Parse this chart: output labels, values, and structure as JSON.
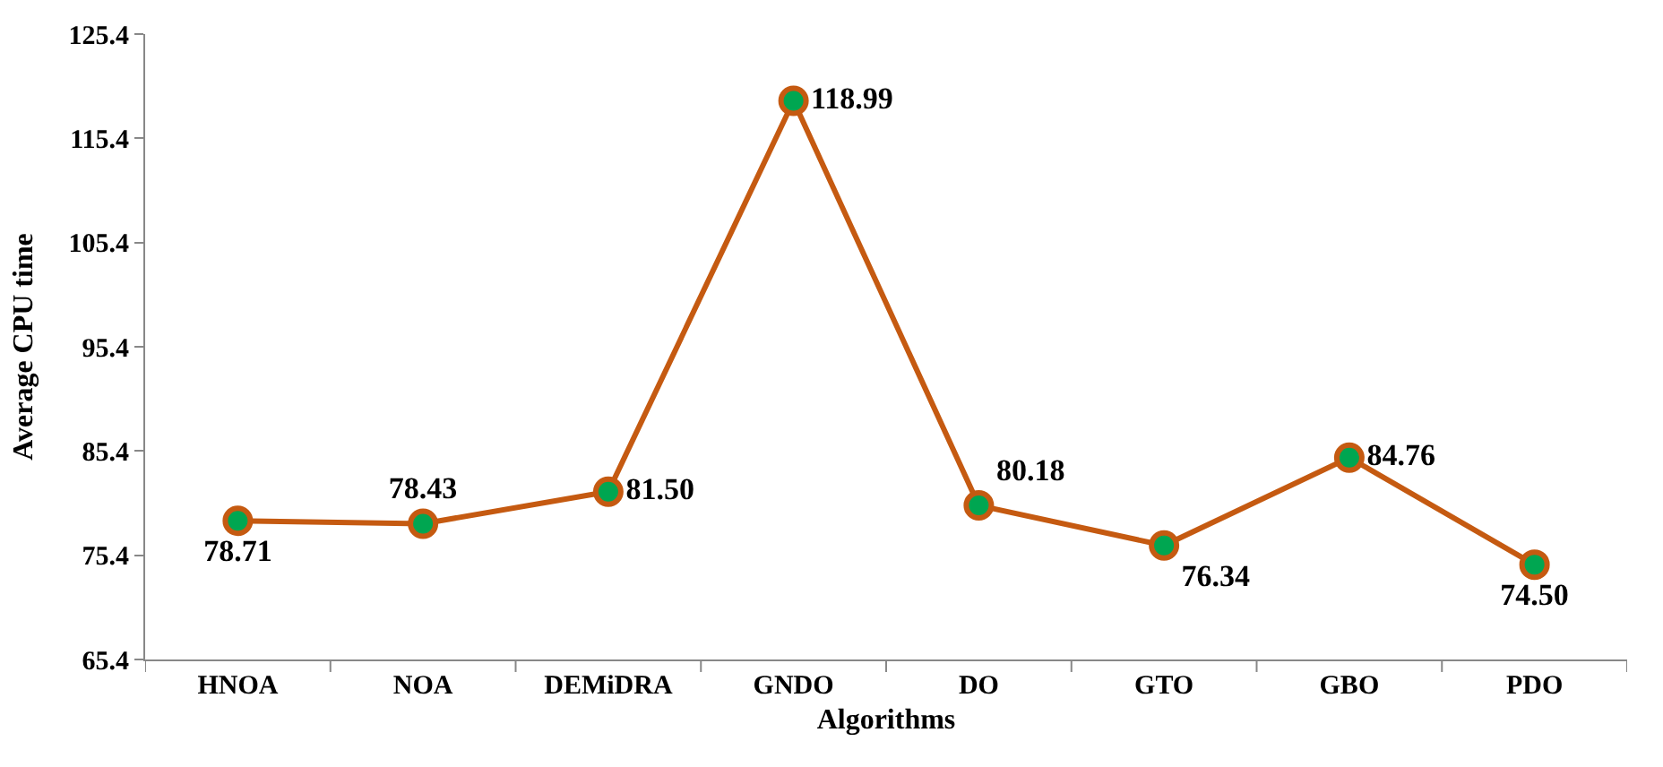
{
  "chart_data": {
    "type": "line",
    "xlabel": "Algorithms",
    "ylabel": "Average CPU time",
    "categories": [
      "HNOA",
      "NOA",
      "DEMiDRA",
      "GNDO",
      "DO",
      "GTO",
      "GBO",
      "PDO"
    ],
    "series": [
      {
        "color": "#c55a11",
        "values": [
          78.71,
          78.43,
          81.5,
          118.99,
          80.18,
          76.34,
          84.76,
          74.5
        ],
        "value_labels": [
          "78.71",
          "78.43",
          "81.50",
          "118.99",
          "80.18",
          "76.34",
          "84.76",
          "74.50"
        ]
      }
    ],
    "ylim": [
      65.4,
      125.4
    ],
    "yticks": [
      65.4,
      75.4,
      85.4,
      95.4,
      105.4,
      115.4,
      125.4
    ],
    "legend": false,
    "marker": "circle",
    "line_style": "solid"
  }
}
